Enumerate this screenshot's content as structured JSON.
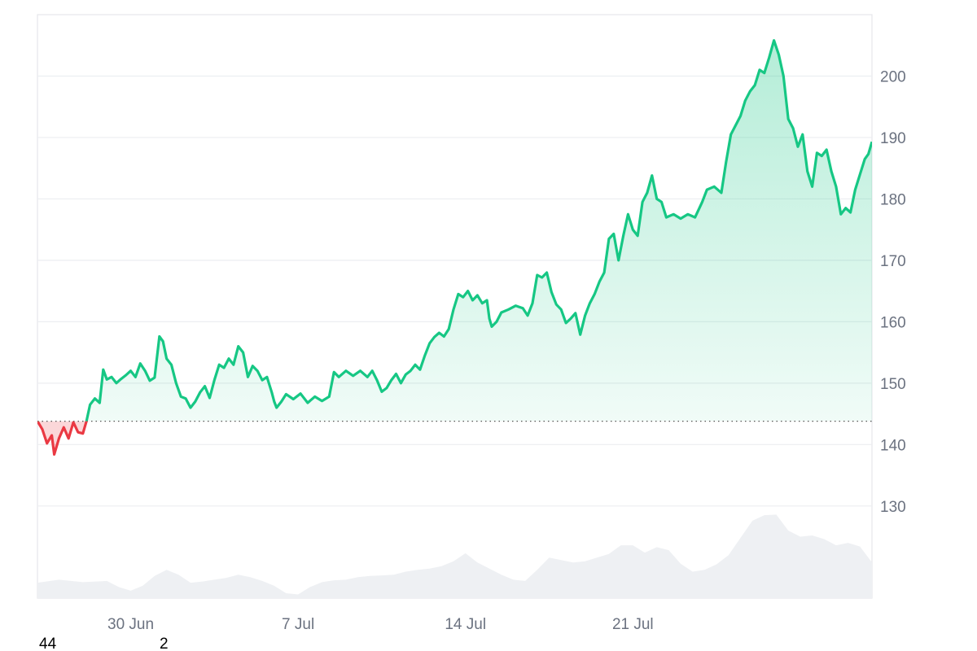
{
  "chart_data": {
    "type": "area",
    "reference_value": 143.8,
    "colors": {
      "up_line": "#16c784",
      "up_fill": "#16c784",
      "down_line": "#ea3943",
      "down_fill": "#ea3943",
      "volume_fill": "#eef0f3",
      "grid": "#eceef1",
      "axis_text": "#6b7280",
      "reference_line": "#555555"
    },
    "ylim": [
      115,
      210
    ],
    "y_ticks": [
      130,
      140,
      150,
      160,
      170,
      180,
      190,
      200
    ],
    "y_tick_labels": [
      "130",
      "140",
      "150",
      "160",
      "170",
      "180",
      "190",
      "200"
    ],
    "x_tick_labels": [
      "30 Jun",
      "7 Jul",
      "14 Jul",
      "21 Jul"
    ],
    "xlim_days": [
      -3.9,
      31.0
    ],
    "x_tick_days": [
      0,
      7,
      14,
      21
    ],
    "price_series": [
      [
        -3.9,
        143.8
      ],
      [
        -3.7,
        142.5
      ],
      [
        -3.5,
        140.2
      ],
      [
        -3.3,
        141.5
      ],
      [
        -3.2,
        138.4
      ],
      [
        -3.0,
        141.0
      ],
      [
        -2.8,
        142.8
      ],
      [
        -2.6,
        141.0
      ],
      [
        -2.4,
        143.6
      ],
      [
        -2.2,
        142.0
      ],
      [
        -2.0,
        141.8
      ],
      [
        -1.85,
        143.8
      ],
      [
        -1.7,
        146.5
      ],
      [
        -1.5,
        147.5
      ],
      [
        -1.3,
        146.8
      ],
      [
        -1.15,
        152.2
      ],
      [
        -1.0,
        150.6
      ],
      [
        -0.8,
        151.0
      ],
      [
        -0.6,
        150.0
      ],
      [
        -0.4,
        150.7
      ],
      [
        -0.2,
        151.3
      ],
      [
        0.0,
        152.0
      ],
      [
        0.2,
        151.0
      ],
      [
        0.4,
        153.2
      ],
      [
        0.6,
        152.0
      ],
      [
        0.8,
        150.4
      ],
      [
        1.0,
        150.9
      ],
      [
        1.2,
        157.6
      ],
      [
        1.35,
        156.8
      ],
      [
        1.5,
        154.0
      ],
      [
        1.7,
        153.0
      ],
      [
        1.9,
        150.0
      ],
      [
        2.1,
        147.8
      ],
      [
        2.3,
        147.5
      ],
      [
        2.5,
        146.0
      ],
      [
        2.7,
        147.0
      ],
      [
        2.9,
        148.5
      ],
      [
        3.1,
        149.5
      ],
      [
        3.3,
        147.6
      ],
      [
        3.5,
        150.5
      ],
      [
        3.7,
        153.0
      ],
      [
        3.9,
        152.5
      ],
      [
        4.1,
        154.0
      ],
      [
        4.3,
        153.0
      ],
      [
        4.5,
        156.0
      ],
      [
        4.7,
        155.0
      ],
      [
        4.9,
        151.0
      ],
      [
        5.1,
        152.8
      ],
      [
        5.3,
        152.0
      ],
      [
        5.5,
        150.5
      ],
      [
        5.7,
        151.0
      ],
      [
        5.9,
        148.5
      ],
      [
        6.0,
        147.0
      ],
      [
        6.1,
        146.0
      ],
      [
        6.3,
        147.0
      ],
      [
        6.5,
        148.2
      ],
      [
        6.8,
        147.4
      ],
      [
        7.1,
        148.3
      ],
      [
        7.4,
        146.8
      ],
      [
        7.7,
        147.8
      ],
      [
        8.0,
        147.1
      ],
      [
        8.3,
        147.8
      ],
      [
        8.5,
        151.8
      ],
      [
        8.7,
        151.0
      ],
      [
        9.0,
        152.0
      ],
      [
        9.3,
        151.2
      ],
      [
        9.6,
        152.0
      ],
      [
        9.9,
        151.0
      ],
      [
        10.1,
        152.0
      ],
      [
        10.3,
        150.5
      ],
      [
        10.5,
        148.6
      ],
      [
        10.7,
        149.2
      ],
      [
        10.9,
        150.5
      ],
      [
        11.1,
        151.5
      ],
      [
        11.3,
        150.0
      ],
      [
        11.5,
        151.4
      ],
      [
        11.7,
        152.0
      ],
      [
        11.9,
        153.0
      ],
      [
        12.1,
        152.2
      ],
      [
        12.3,
        154.5
      ],
      [
        12.5,
        156.5
      ],
      [
        12.7,
        157.5
      ],
      [
        12.9,
        158.2
      ],
      [
        13.1,
        157.6
      ],
      [
        13.3,
        158.8
      ],
      [
        13.5,
        162.0
      ],
      [
        13.7,
        164.5
      ],
      [
        13.9,
        164.0
      ],
      [
        14.1,
        165.0
      ],
      [
        14.3,
        163.5
      ],
      [
        14.5,
        164.3
      ],
      [
        14.7,
        163.0
      ],
      [
        14.9,
        163.5
      ],
      [
        15.0,
        160.5
      ],
      [
        15.1,
        159.2
      ],
      [
        15.3,
        160.0
      ],
      [
        15.5,
        161.5
      ],
      [
        15.8,
        162.0
      ],
      [
        16.1,
        162.6
      ],
      [
        16.4,
        162.2
      ],
      [
        16.6,
        161.0
      ],
      [
        16.8,
        163.0
      ],
      [
        17.0,
        167.6
      ],
      [
        17.2,
        167.2
      ],
      [
        17.4,
        168.0
      ],
      [
        17.6,
        164.8
      ],
      [
        17.8,
        162.8
      ],
      [
        18.0,
        162.0
      ],
      [
        18.2,
        159.8
      ],
      [
        18.4,
        160.5
      ],
      [
        18.6,
        161.4
      ],
      [
        18.8,
        157.9
      ],
      [
        19.0,
        161.0
      ],
      [
        19.2,
        163.0
      ],
      [
        19.4,
        164.5
      ],
      [
        19.6,
        166.5
      ],
      [
        19.8,
        168.0
      ],
      [
        20.0,
        173.5
      ],
      [
        20.2,
        174.3
      ],
      [
        20.4,
        170.0
      ],
      [
        20.6,
        174.0
      ],
      [
        20.8,
        177.5
      ],
      [
        21.0,
        175.0
      ],
      [
        21.2,
        174.0
      ],
      [
        21.4,
        179.5
      ],
      [
        21.6,
        181.0
      ],
      [
        21.8,
        183.8
      ],
      [
        22.0,
        180.0
      ],
      [
        22.2,
        179.5
      ],
      [
        22.4,
        177.0
      ],
      [
        22.7,
        177.5
      ],
      [
        23.0,
        176.8
      ],
      [
        23.3,
        177.5
      ],
      [
        23.6,
        177.0
      ],
      [
        23.9,
        179.5
      ],
      [
        24.1,
        181.5
      ],
      [
        24.4,
        182.0
      ],
      [
        24.7,
        181.0
      ],
      [
        24.9,
        186.0
      ],
      [
        25.1,
        190.5
      ],
      [
        25.3,
        192.0
      ],
      [
        25.5,
        193.5
      ],
      [
        25.7,
        196.0
      ],
      [
        25.9,
        197.5
      ],
      [
        26.1,
        198.5
      ],
      [
        26.3,
        201.0
      ],
      [
        26.5,
        200.5
      ],
      [
        26.7,
        203.0
      ],
      [
        26.9,
        205.8
      ],
      [
        27.1,
        203.5
      ],
      [
        27.3,
        200.0
      ],
      [
        27.5,
        193.0
      ],
      [
        27.7,
        191.5
      ],
      [
        27.9,
        188.5
      ],
      [
        28.1,
        190.5
      ],
      [
        28.3,
        184.5
      ],
      [
        28.5,
        182.0
      ],
      [
        28.7,
        187.5
      ],
      [
        28.9,
        187.0
      ],
      [
        29.1,
        188.0
      ],
      [
        29.3,
        184.5
      ],
      [
        29.5,
        182.0
      ],
      [
        29.7,
        177.5
      ],
      [
        29.9,
        178.5
      ],
      [
        30.1,
        177.8
      ],
      [
        30.3,
        181.5
      ],
      [
        30.5,
        184.0
      ],
      [
        30.7,
        186.5
      ],
      [
        30.85,
        187.3
      ],
      [
        31.0,
        189.3
      ]
    ],
    "volume_series": [
      [
        -3.9,
        117.5
      ],
      [
        -3.0,
        118.0
      ],
      [
        -2.0,
        117.6
      ],
      [
        -1.0,
        117.8
      ],
      [
        -0.5,
        116.8
      ],
      [
        0.0,
        116.2
      ],
      [
        0.5,
        117.0
      ],
      [
        1.0,
        118.6
      ],
      [
        1.5,
        119.6
      ],
      [
        2.0,
        118.8
      ],
      [
        2.5,
        117.5
      ],
      [
        3.0,
        117.7
      ],
      [
        3.5,
        118.0
      ],
      [
        4.0,
        118.3
      ],
      [
        4.5,
        118.8
      ],
      [
        5.0,
        118.4
      ],
      [
        5.5,
        117.8
      ],
      [
        6.0,
        117.0
      ],
      [
        6.5,
        115.8
      ],
      [
        7.0,
        115.6
      ],
      [
        7.5,
        116.8
      ],
      [
        8.0,
        117.6
      ],
      [
        8.5,
        117.9
      ],
      [
        9.0,
        118.0
      ],
      [
        9.5,
        118.4
      ],
      [
        10.0,
        118.6
      ],
      [
        10.5,
        118.7
      ],
      [
        11.0,
        118.8
      ],
      [
        11.5,
        119.3
      ],
      [
        12.0,
        119.6
      ],
      [
        12.5,
        119.8
      ],
      [
        13.0,
        120.2
      ],
      [
        13.5,
        121.0
      ],
      [
        14.0,
        122.3
      ],
      [
        14.5,
        120.8
      ],
      [
        15.0,
        119.8
      ],
      [
        15.5,
        118.8
      ],
      [
        16.0,
        118.0
      ],
      [
        16.5,
        117.8
      ],
      [
        17.0,
        119.6
      ],
      [
        17.5,
        121.6
      ],
      [
        18.0,
        121.2
      ],
      [
        18.5,
        120.8
      ],
      [
        19.0,
        121.0
      ],
      [
        19.5,
        121.6
      ],
      [
        20.0,
        122.2
      ],
      [
        20.5,
        123.6
      ],
      [
        21.0,
        123.6
      ],
      [
        21.5,
        122.4
      ],
      [
        22.0,
        123.3
      ],
      [
        22.5,
        122.8
      ],
      [
        23.0,
        120.6
      ],
      [
        23.5,
        119.3
      ],
      [
        24.0,
        119.6
      ],
      [
        24.5,
        120.5
      ],
      [
        25.0,
        122.0
      ],
      [
        25.5,
        124.8
      ],
      [
        26.0,
        127.6
      ],
      [
        26.5,
        128.5
      ],
      [
        27.0,
        128.6
      ],
      [
        27.5,
        126.0
      ],
      [
        28.0,
        125.0
      ],
      [
        28.5,
        125.2
      ],
      [
        29.0,
        124.6
      ],
      [
        29.5,
        123.6
      ],
      [
        30.0,
        124.0
      ],
      [
        30.5,
        123.4
      ],
      [
        31.0,
        120.8
      ]
    ]
  },
  "footer": {
    "left_number": "44",
    "right_number": "2"
  }
}
